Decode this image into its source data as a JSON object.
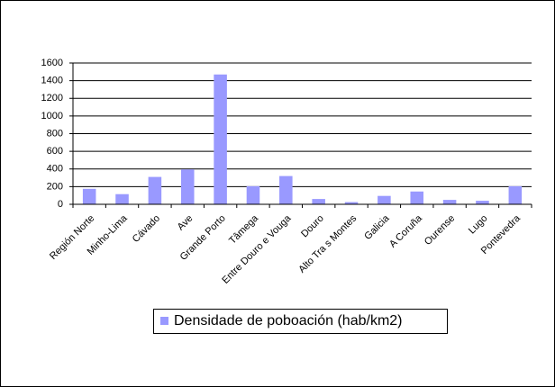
{
  "chart_data": {
    "type": "bar",
    "categories": [
      "Región Norte",
      "Minho-Lima",
      "Cávado",
      "Ave",
      "Grande Porto",
      "Tâmega",
      "Entre Douro e Vouga",
      "Douro",
      "Alto Tra s Montes",
      "Galicia",
      "A Coruña",
      "Ourense",
      "Lugo",
      "Pontevedra"
    ],
    "series": [
      {
        "name": "Densidade de poboación (hab/km2)",
        "color": "#9999ff",
        "values": [
          175,
          115,
          310,
          395,
          1470,
          205,
          320,
          60,
          25,
          95,
          145,
          50,
          40,
          205
        ]
      }
    ],
    "ylim": [
      0,
      1600
    ],
    "yticks": [
      0,
      200,
      400,
      600,
      800,
      1000,
      1200,
      1400,
      1600
    ],
    "grid": true,
    "legend": "bottom"
  }
}
